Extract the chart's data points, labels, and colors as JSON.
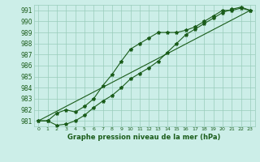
{
  "xlabel": "Graphe pression niveau de la mer (hPa)",
  "xlim": [
    -0.5,
    23.5
  ],
  "ylim": [
    980.5,
    991.5
  ],
  "yticks": [
    981,
    982,
    983,
    984,
    985,
    986,
    987,
    988,
    989,
    990,
    991
  ],
  "xticks": [
    0,
    1,
    2,
    3,
    4,
    5,
    6,
    7,
    8,
    9,
    10,
    11,
    12,
    13,
    14,
    15,
    16,
    17,
    18,
    19,
    20,
    21,
    22,
    23
  ],
  "background_color": "#cceee8",
  "grid_color": "#99ccbb",
  "line_color": "#1a5c1a",
  "line1_x": [
    0,
    1,
    2,
    3,
    4,
    5,
    6,
    7,
    8,
    9,
    10,
    11,
    12,
    13,
    14,
    15,
    16,
    17,
    18,
    19,
    20,
    21,
    22,
    23
  ],
  "line1_y": [
    981.0,
    981.0,
    981.7,
    982.0,
    981.8,
    982.3,
    983.0,
    984.2,
    985.2,
    986.4,
    987.5,
    988.0,
    988.5,
    989.0,
    989.0,
    989.0,
    989.2,
    989.5,
    990.0,
    990.5,
    991.0,
    991.0,
    991.2,
    991.0
  ],
  "line2_x": [
    0,
    1,
    2,
    3,
    4,
    5,
    6,
    7,
    8,
    9,
    10,
    11,
    12,
    13,
    14,
    15,
    16,
    17,
    18,
    19,
    20,
    21,
    22,
    23
  ],
  "line2_y": [
    981.0,
    981.0,
    980.6,
    980.7,
    981.0,
    981.5,
    982.2,
    982.8,
    983.3,
    984.0,
    984.8,
    985.3,
    985.8,
    986.4,
    987.2,
    988.0,
    988.8,
    989.3,
    989.8,
    990.3,
    990.8,
    991.1,
    991.3,
    991.0
  ],
  "line3_x": [
    0,
    23
  ],
  "line3_y": [
    981.0,
    991.0
  ]
}
